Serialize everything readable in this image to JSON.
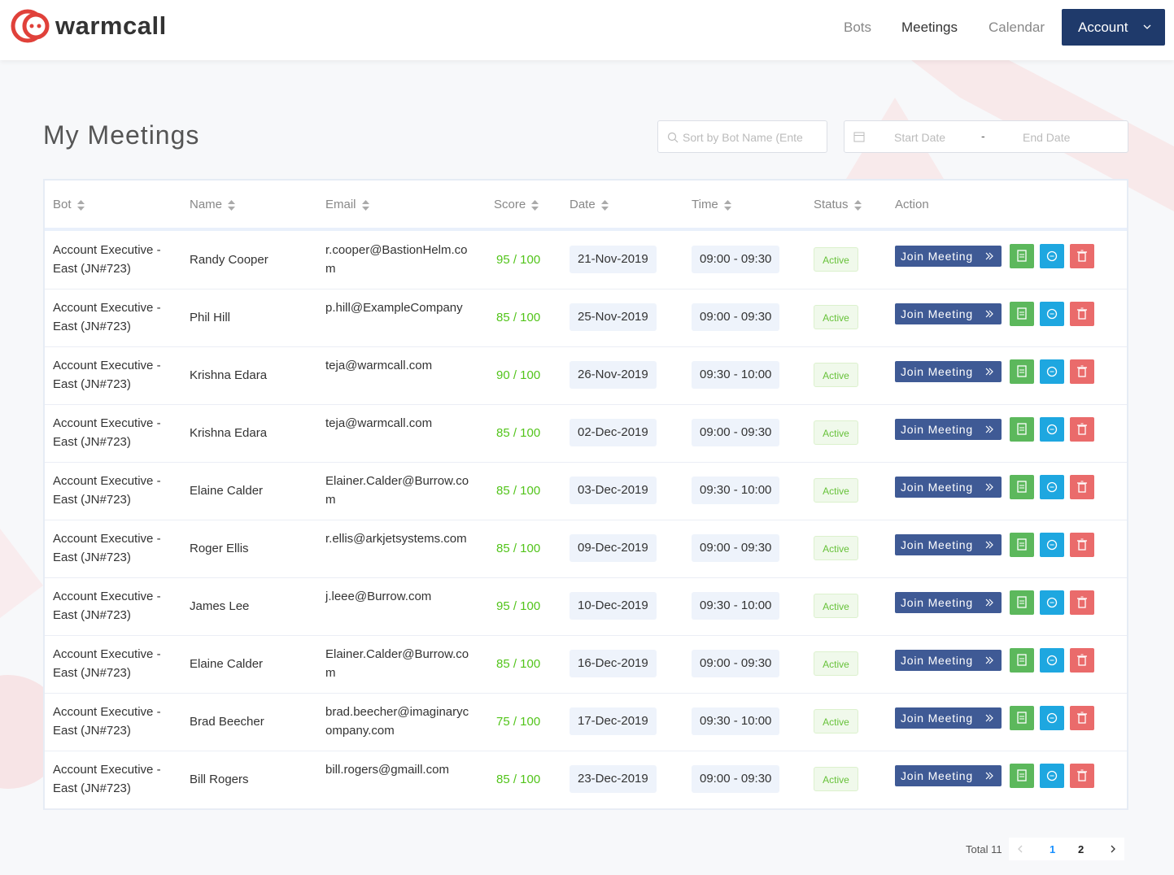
{
  "header": {
    "logo": "warmcall",
    "nav": [
      "Bots",
      "Meetings",
      "Calendar"
    ],
    "account": "Account"
  },
  "page": {
    "title": "My Meetings",
    "search_placeholder": "Sort by Bot Name (Ente",
    "start_date": "Start Date",
    "separator": "-",
    "end_date": "End Date"
  },
  "table": {
    "columns": [
      "Bot",
      "Name",
      "Email",
      "Score",
      "Date",
      "Time",
      "Status",
      "Action"
    ],
    "join_label": "Join Meeting",
    "rows": [
      [
        "Account Executive - East (JN#723)",
        "Randy Cooper",
        "r.cooper@BastionHelm.com",
        "95 / 100",
        "21-Nov-2019",
        "09:00 - 09:30",
        "Active"
      ],
      [
        "Account Executive - East (JN#723)",
        "Phil Hill",
        "p.hill@ExampleCompany",
        "85 / 100",
        "25-Nov-2019",
        "09:00 - 09:30",
        "Active"
      ],
      [
        "Account Executive - East (JN#723)",
        "Krishna Edara",
        "teja@warmcall.com",
        "90 / 100",
        "26-Nov-2019",
        "09:30 - 10:00",
        "Active"
      ],
      [
        "Account Executive - East (JN#723)",
        "Krishna Edara",
        "teja@warmcall.com",
        "85 / 100",
        "02-Dec-2019",
        "09:00 - 09:30",
        "Active"
      ],
      [
        "Account Executive - East (JN#723)",
        "Elaine Calder",
        "Elainer.Calder@Burrow.com",
        "85 / 100",
        "03-Dec-2019",
        "09:30 - 10:00",
        "Active"
      ],
      [
        "Account Executive - East (JN#723)",
        "Roger Ellis",
        "r.ellis@arkjetsystems.com",
        "85 / 100",
        "09-Dec-2019",
        "09:00 - 09:30",
        "Active"
      ],
      [
        "Account Executive - East (JN#723)",
        "James Lee",
        "j.leee@Burrow.com",
        "95 / 100",
        "10-Dec-2019",
        "09:30 - 10:00",
        "Active"
      ],
      [
        "Account Executive - East (JN#723)",
        "Elaine Calder",
        "Elainer.Calder@Burrow.com",
        "85 / 100",
        "16-Dec-2019",
        "09:00 - 09:30",
        "Active"
      ],
      [
        "Account Executive - East (JN#723)",
        "Brad Beecher",
        "brad.beecher@imaginarycompany.com",
        "75 / 100",
        "17-Dec-2019",
        "09:30 - 10:00",
        "Active"
      ],
      [
        "Account Executive - East (JN#723)",
        "Bill Rogers",
        "bill.rogers@gmaill.com",
        "85 / 100",
        "23-Dec-2019",
        "09:00 - 09:30",
        "Active"
      ]
    ]
  },
  "pagination": {
    "total": "Total 11",
    "pages": [
      "1",
      "2"
    ]
  }
}
